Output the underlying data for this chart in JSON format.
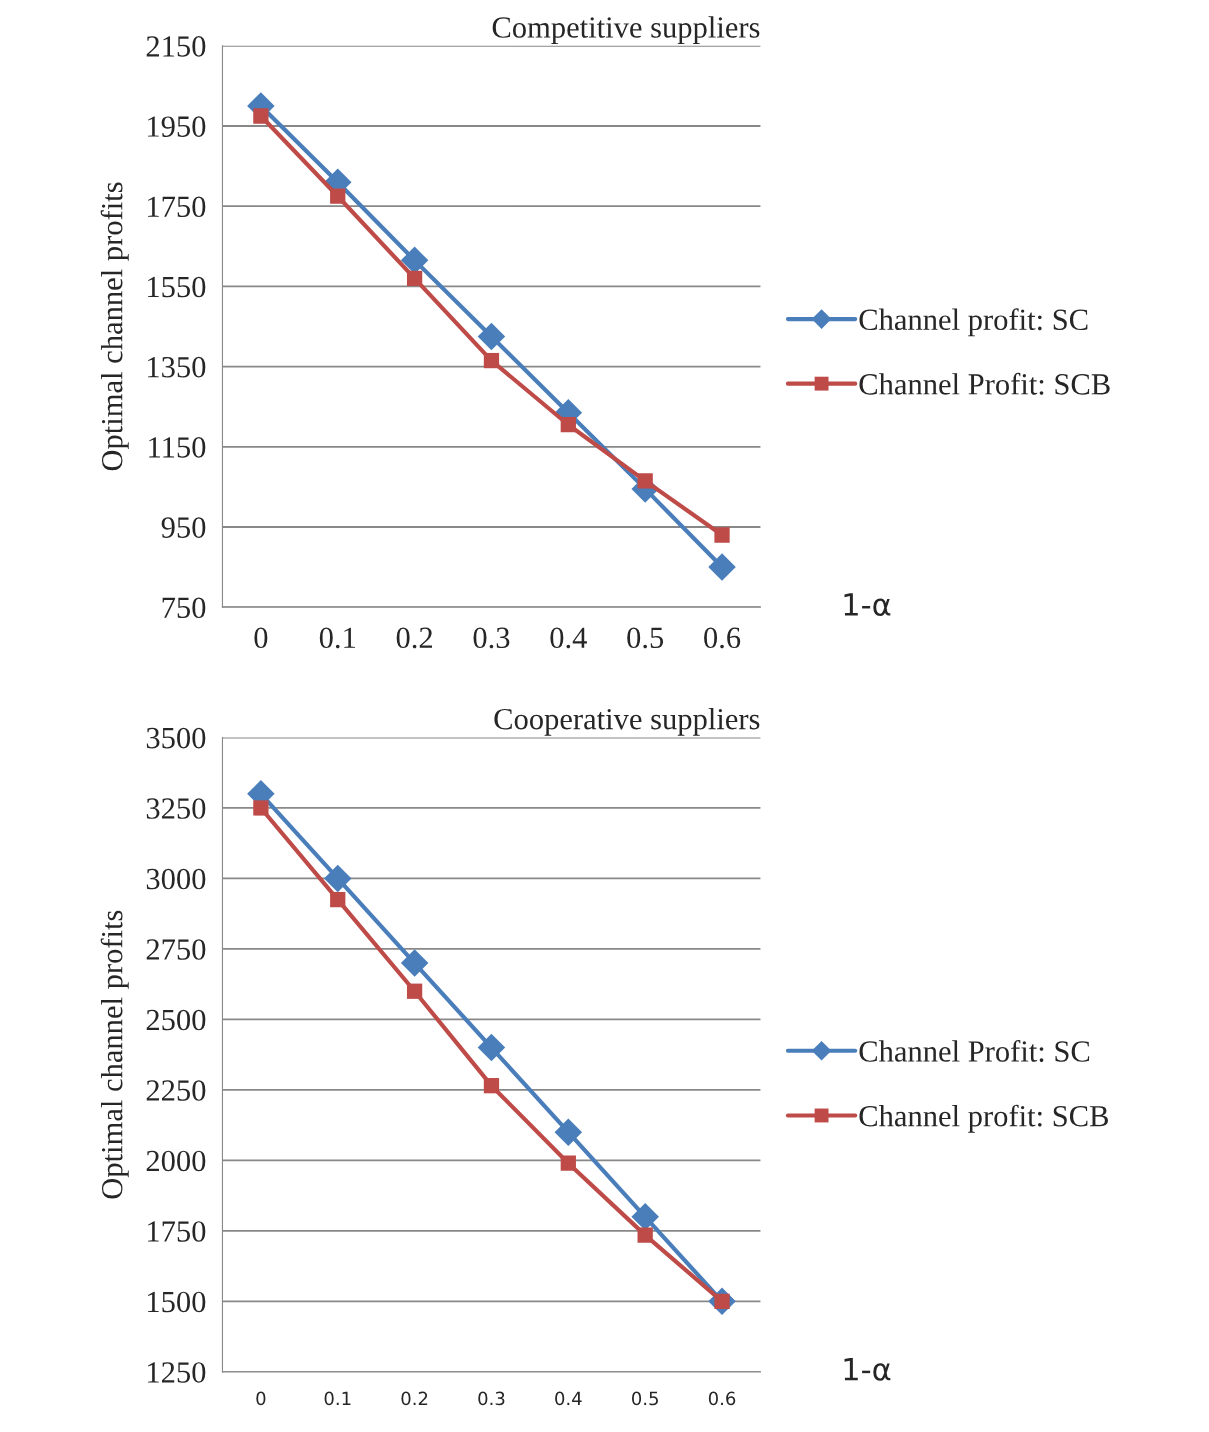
{
  "chart_data": [
    {
      "type": "line",
      "title": "Competitive suppliers",
      "ylabel": "Optimal channel profits",
      "xlabel": "1-α",
      "categories": [
        "0",
        "0.1",
        "0.2",
        "0.3",
        "0.4",
        "0.5",
        "0.6"
      ],
      "ylim": [
        750,
        2150
      ],
      "yticks": [
        750,
        950,
        1150,
        1350,
        1550,
        1750,
        1950,
        2150
      ],
      "grid": "y",
      "legend": "right",
      "series": [
        {
          "name": "Channel profit: SC",
          "color": "#4a7ebb",
          "marker": "diamond",
          "values": [
            2000,
            1810,
            1615,
            1425,
            1235,
            1045,
            850
          ]
        },
        {
          "name": "Channel Profit: SCB",
          "color": "#be4b48",
          "marker": "square",
          "values": [
            1975,
            1775,
            1570,
            1365,
            1205,
            1065,
            930
          ]
        }
      ]
    },
    {
      "type": "line",
      "title": "Cooperative suppliers",
      "ylabel": "Optimal channel profits",
      "xlabel": "1-α",
      "categories": [
        "0",
        "0.1",
        "0.2",
        "0.3",
        "0.4",
        "0.5",
        "0.6"
      ],
      "ylim": [
        1250,
        3500
      ],
      "yticks": [
        1250,
        1500,
        1750,
        2000,
        2250,
        2500,
        2750,
        3000,
        3250,
        3500
      ],
      "grid": "y",
      "legend": "right",
      "series": [
        {
          "name": "Channel Profit: SC",
          "color": "#4a7ebb",
          "marker": "diamond",
          "values": [
            3300,
            3000,
            2700,
            2400,
            2100,
            1800,
            1500
          ]
        },
        {
          "name": "Channel profit: SCB",
          "color": "#be4b48",
          "marker": "square",
          "values": [
            3250,
            2925,
            2600,
            2265,
            1990,
            1735,
            1500
          ]
        }
      ]
    }
  ]
}
